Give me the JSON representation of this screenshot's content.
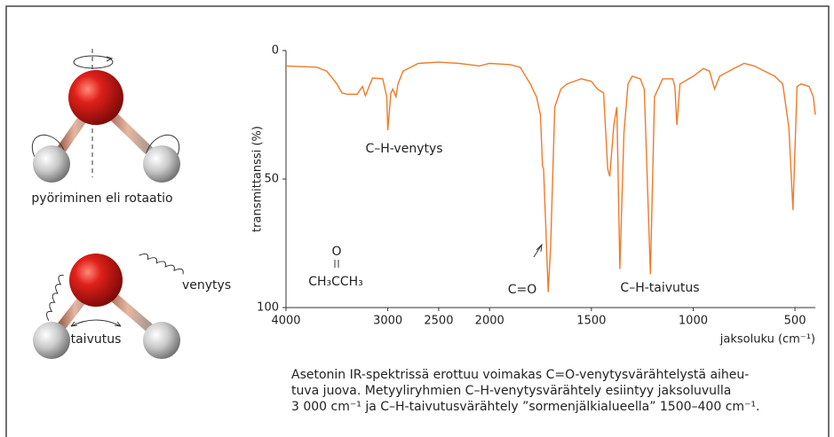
{
  "chart_data": {
    "type": "line",
    "color": "#f07a2a",
    "ylabel": "transmittanssi (%)",
    "xlabel": "jaksoluku (cm⁻¹)",
    "xlim": [
      4000,
      400
    ],
    "xscale_break": 2000,
    "xticks": [
      4000,
      3000,
      2500,
      2000,
      1500,
      1000,
      500
    ],
    "ylim": [
      100,
      0
    ],
    "yticks": [
      0,
      50,
      100
    ],
    "annotations": [
      "C–H-venytys",
      "O",
      "CH₃CCH₃",
      "C=O",
      "C–H-taivutus"
    ],
    "x": [
      4000,
      3700,
      3600,
      3500,
      3450,
      3400,
      3300,
      3250,
      3220,
      3150,
      3050,
      3010,
      3000,
      2970,
      2950,
      2920,
      2900,
      2850,
      2700,
      2500,
      2300,
      2200,
      2100,
      2000,
      1900,
      1850,
      1800,
      1770,
      1750,
      1740,
      1735,
      1722,
      1712,
      1700,
      1680,
      1650,
      1620,
      1550,
      1500,
      1470,
      1440,
      1420,
      1410,
      1390,
      1375,
      1360,
      1340,
      1320,
      1300,
      1260,
      1240,
      1210,
      1190,
      1150,
      1100,
      1090,
      1080,
      1065,
      1000,
      950,
      920,
      895,
      870,
      800,
      750,
      700,
      600,
      560,
      530,
      510,
      490,
      470,
      430,
      410,
      400
    ],
    "values": [
      6,
      6.5,
      8,
      13,
      16.5,
      17,
      17,
      14,
      17.6,
      10.7,
      11,
      18,
      31,
      16.5,
      15,
      18,
      13,
      8,
      5,
      4.5,
      5,
      5.5,
      6,
      5,
      5.5,
      6.5,
      13,
      18,
      25,
      45,
      46,
      73,
      94,
      76,
      22,
      15,
      13,
      11,
      12,
      15,
      16.5,
      46,
      49,
      29,
      22,
      85,
      32,
      13,
      10,
      11,
      15,
      87,
      18,
      11,
      11,
      14,
      29,
      13,
      10,
      7,
      8,
      15,
      10,
      7,
      5,
      6,
      10,
      13,
      30,
      62,
      14,
      13,
      14,
      18,
      25
    ]
  },
  "figure": {
    "rotation_label": "pyöriminen eli rotaatio",
    "stretch_label": "venytys",
    "bend_label": "taivutus",
    "caption": [
      "Asetonin IR-spektrissä erottuu voimakas C=O-venytysvärähtelystä aiheu-",
      "tuva juova. Metyyliryhmien C–H-venytysvärähtely esiintyy jaksoluvulla",
      "3 000 cm⁻¹ ja C–H-taivutusvärähtely ”sormenjälkialueella” 1500–400 cm⁻¹."
    ]
  }
}
